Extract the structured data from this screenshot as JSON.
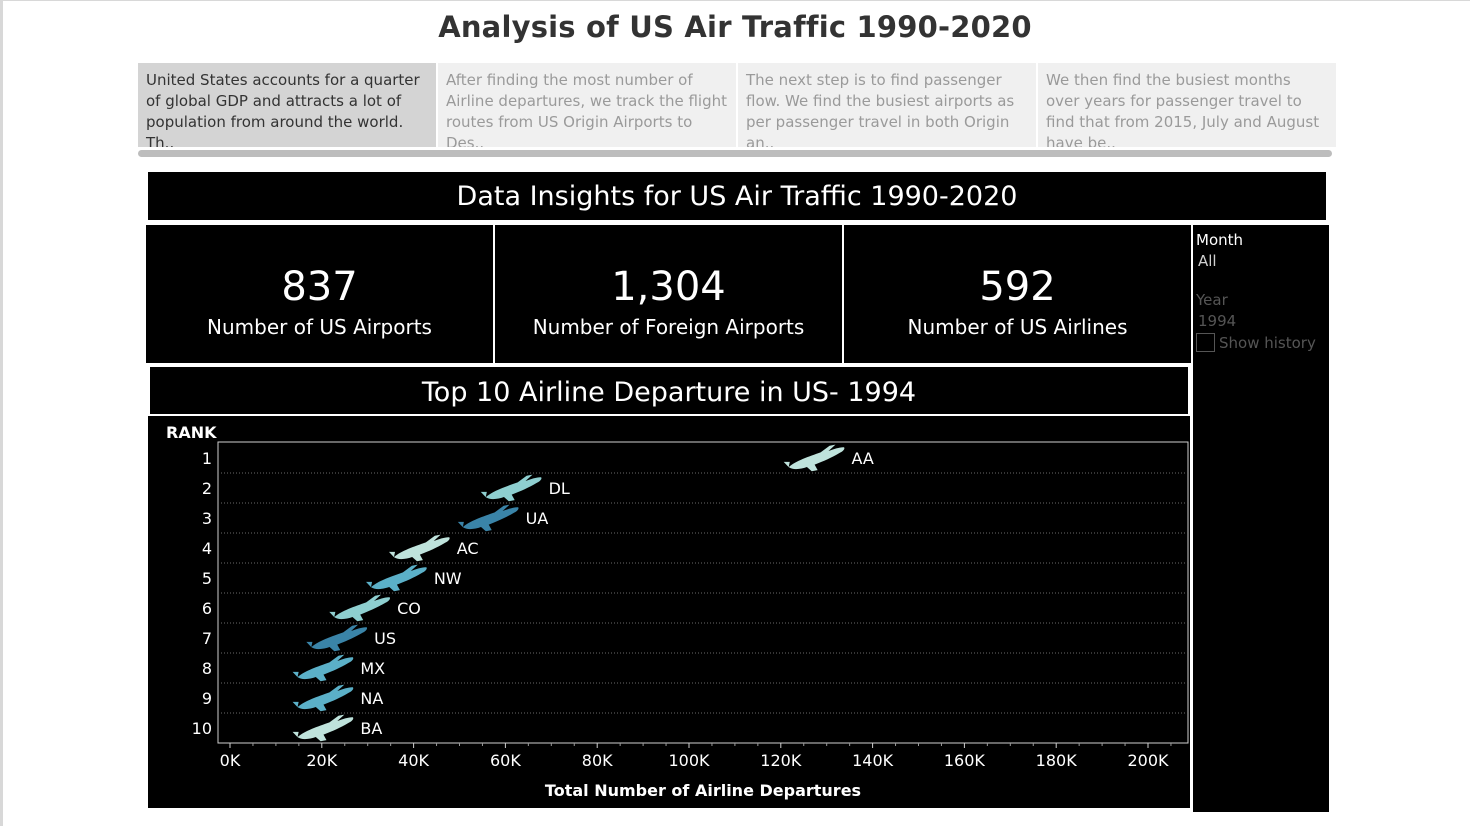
{
  "page": {
    "title": "Analysis of US Air Traffic 1990-2020"
  },
  "story": [
    {
      "text": "United States accounts for a quarter of global GDP and attracts a lot of population from around the world. Th..",
      "active": true
    },
    {
      "text": "After finding the most number of Airline departures, we track the flight routes from US Origin Airports to Des..",
      "active": false
    },
    {
      "text": "The next step is to find passenger flow. We find the busiest airports as per passenger travel in both Origin an..",
      "active": false
    },
    {
      "text": "We then find the busiest months over years for passenger travel to find that from 2015, July and August have be..",
      "active": false
    }
  ],
  "dashboard": {
    "header": "Data Insights for US Air Traffic 1990-2020"
  },
  "kpis": [
    {
      "value": "837",
      "label": "Number of US Airports"
    },
    {
      "value": "1,304",
      "label": "Number of Foreign Airports"
    },
    {
      "value": "592",
      "label": "Number of US Airlines"
    }
  ],
  "filters": {
    "month_title": "Month",
    "month_value": "All",
    "year_title": "Year",
    "year_value": "1994",
    "show_history_label": "Show history"
  },
  "icons": {
    "mark": "airplane-icon",
    "checkbox": "checkbox-icon"
  },
  "colors": {
    "light": "#bfe3dc",
    "mid_light": "#8ecfd0",
    "mid": "#5bb0c8",
    "dark": "#3a84a8"
  },
  "chart_data": {
    "type": "scatter",
    "title": "Top 10 Airline Departure in US- 1994",
    "xlabel": "Total Number of Airline Departures",
    "ylabel": "RANK",
    "x_ticks": [
      "0K",
      "20K",
      "40K",
      "60K",
      "80K",
      "100K",
      "120K",
      "140K",
      "160K",
      "180K",
      "200K"
    ],
    "xlim": [
      0,
      210000
    ],
    "points": [
      {
        "rank": 1,
        "airline": "AA",
        "departures": 128000,
        "color": "#bfe3dc"
      },
      {
        "rank": 2,
        "airline": "DL",
        "departures": 62000,
        "color": "#8ecfd0"
      },
      {
        "rank": 3,
        "airline": "UA",
        "departures": 57000,
        "color": "#3a84a8"
      },
      {
        "rank": 4,
        "airline": "AC",
        "departures": 42000,
        "color": "#bfe3dc"
      },
      {
        "rank": 5,
        "airline": "NW",
        "departures": 37000,
        "color": "#5bb0c8"
      },
      {
        "rank": 6,
        "airline": "CO",
        "departures": 29000,
        "color": "#8ecfd0"
      },
      {
        "rank": 7,
        "airline": "US",
        "departures": 24000,
        "color": "#3a84a8"
      },
      {
        "rank": 8,
        "airline": "MX",
        "departures": 21000,
        "color": "#5bb0c8"
      },
      {
        "rank": 9,
        "airline": "NA",
        "departures": 21000,
        "color": "#5bb0c8"
      },
      {
        "rank": 10,
        "airline": "BA",
        "departures": 21000,
        "color": "#bfe3dc"
      }
    ]
  }
}
